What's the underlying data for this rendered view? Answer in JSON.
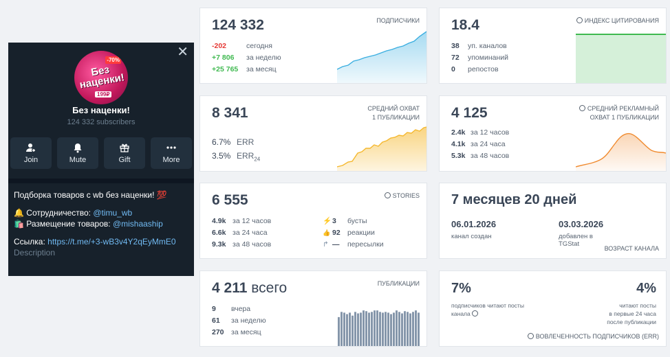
{
  "channel": {
    "name": "Без наценки!",
    "subscribers": "124 332 subscribers",
    "avatar": {
      "text": "Без\nнаценки!",
      "tag": "-70%",
      "price": "199₽"
    },
    "buttons": [
      {
        "label": "Join",
        "icon": "add-user-icon"
      },
      {
        "label": "Mute",
        "icon": "bell-icon"
      },
      {
        "label": "Gift",
        "icon": "gift-icon"
      },
      {
        "label": "More",
        "icon": "more-icon"
      }
    ],
    "description": {
      "line1": "Подборка товаров с wb без наценки! 💯",
      "line2_prefix": "🔔 Сотрудничество: ",
      "line2_link": "@timu_wb",
      "line3_prefix": "🛍️ Размещение товаров: ",
      "line3_link": "@mishaaship",
      "line4_prefix": "Ссылка: ",
      "line4_link": "https://t.me/+3-wB3v4Y2qEyMmE0",
      "footer": "Description"
    }
  },
  "subscribers_card": {
    "value": "124 332",
    "caption": "ПОДПИСЧИКИ",
    "rows": [
      {
        "value": "-202",
        "label": "сегодня",
        "tone": "neg"
      },
      {
        "value": "+7 806",
        "label": "за неделю",
        "tone": "pos"
      },
      {
        "value": "+25 765",
        "label": "за месяц",
        "tone": "pos"
      }
    ],
    "color": "#3aaee0"
  },
  "citation_card": {
    "value": "18.4",
    "caption": "ИНДЕКС ЦИТИРОВАНИЯ",
    "rows": [
      {
        "value": "38",
        "label": "уп. каналов"
      },
      {
        "value": "72",
        "label": "упоминаний"
      },
      {
        "value": "0",
        "label": "репостов"
      }
    ],
    "color": "#3fb950"
  },
  "reach_card": {
    "value": "8 341",
    "caption_line1": "СРЕДНИЙ ОХВАТ",
    "caption_line2": "1 ПУБЛИКАЦИИ",
    "err_value": "6.7%",
    "err_label": "ERR",
    "err24_value": "3.5%",
    "err24_label": "ERR",
    "err24_sub": "24",
    "color": "#f5b82e"
  },
  "ad_reach_card": {
    "value": "4 125",
    "caption_line1": "СРЕДНИЙ РЕКЛАМНЫЙ",
    "caption_line2": "ОХВАТ 1 ПУБЛИКАЦИИ",
    "rows": [
      {
        "value": "2.4k",
        "label": "за 12 часов"
      },
      {
        "value": "4.1k",
        "label": "за 24 часа"
      },
      {
        "value": "5.3k",
        "label": "за 48 часов"
      }
    ],
    "color": "#f08a2e"
  },
  "stories_card": {
    "value": "6 555",
    "caption": "STORIES",
    "rows": [
      {
        "value": "4.9k",
        "label": "за 12 часов"
      },
      {
        "value": "6.6k",
        "label": "за 24 часа"
      },
      {
        "value": "9.3k",
        "label": "за 48 часов"
      }
    ],
    "right_rows": [
      {
        "icon": "⚡",
        "value": "3",
        "label": "бусты"
      },
      {
        "icon": "👍",
        "value": "92",
        "label": "реакции"
      },
      {
        "icon": "↱",
        "value": "—",
        "label": "пересылки"
      }
    ]
  },
  "age_card": {
    "value": "7 месяцев 20 дней",
    "created_date": "06.01.2026",
    "created_label": "канал создан",
    "added_date": "03.03.2026",
    "added_label": "добавлен в TGStat",
    "caption": "ВОЗРАСТ КАНАЛА"
  },
  "posts_card": {
    "value": "4 211",
    "unit": "всего",
    "caption": "ПУБЛИКАЦИИ",
    "rows": [
      {
        "value": "9",
        "label": "вчера"
      },
      {
        "value": "61",
        "label": "за неделю"
      },
      {
        "value": "270",
        "label": "за месяц"
      }
    ],
    "color": "#8596aa"
  },
  "engagement_card": {
    "left_percent": "7%",
    "left_line1": "подписчиков читают посты",
    "left_line2": "канала",
    "right_percent": "4%",
    "right_line1": "читают посты",
    "right_line2": "в первые 24 часа",
    "right_line3": "после публикации",
    "caption": "ВОВЛЕЧЕННОСТЬ ПОДПИСЧИКОВ (ERR)"
  }
}
